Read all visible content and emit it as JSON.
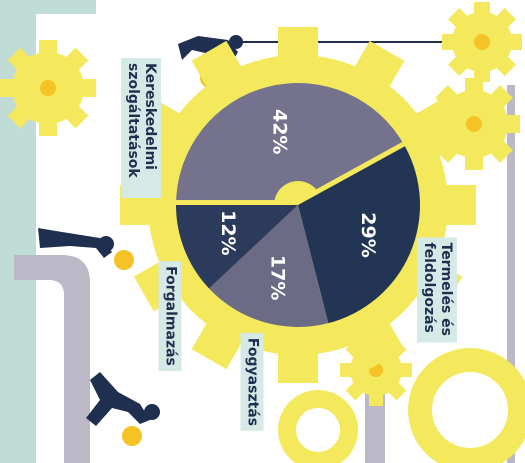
{
  "chart_data": {
    "type": "pie",
    "categories": [
      "Kereskedelmi szolgáltatások",
      "Termelés és feldolgozás",
      "Fogyasztás",
      "Forgalmazás"
    ],
    "values": [
      42,
      29,
      17,
      12
    ],
    "value_labels": [
      "42%",
      "29%",
      "17%",
      "12%"
    ],
    "colors": [
      "#74728c",
      "#233554",
      "#6c6b86",
      "#2c3a5c"
    ]
  }
}
